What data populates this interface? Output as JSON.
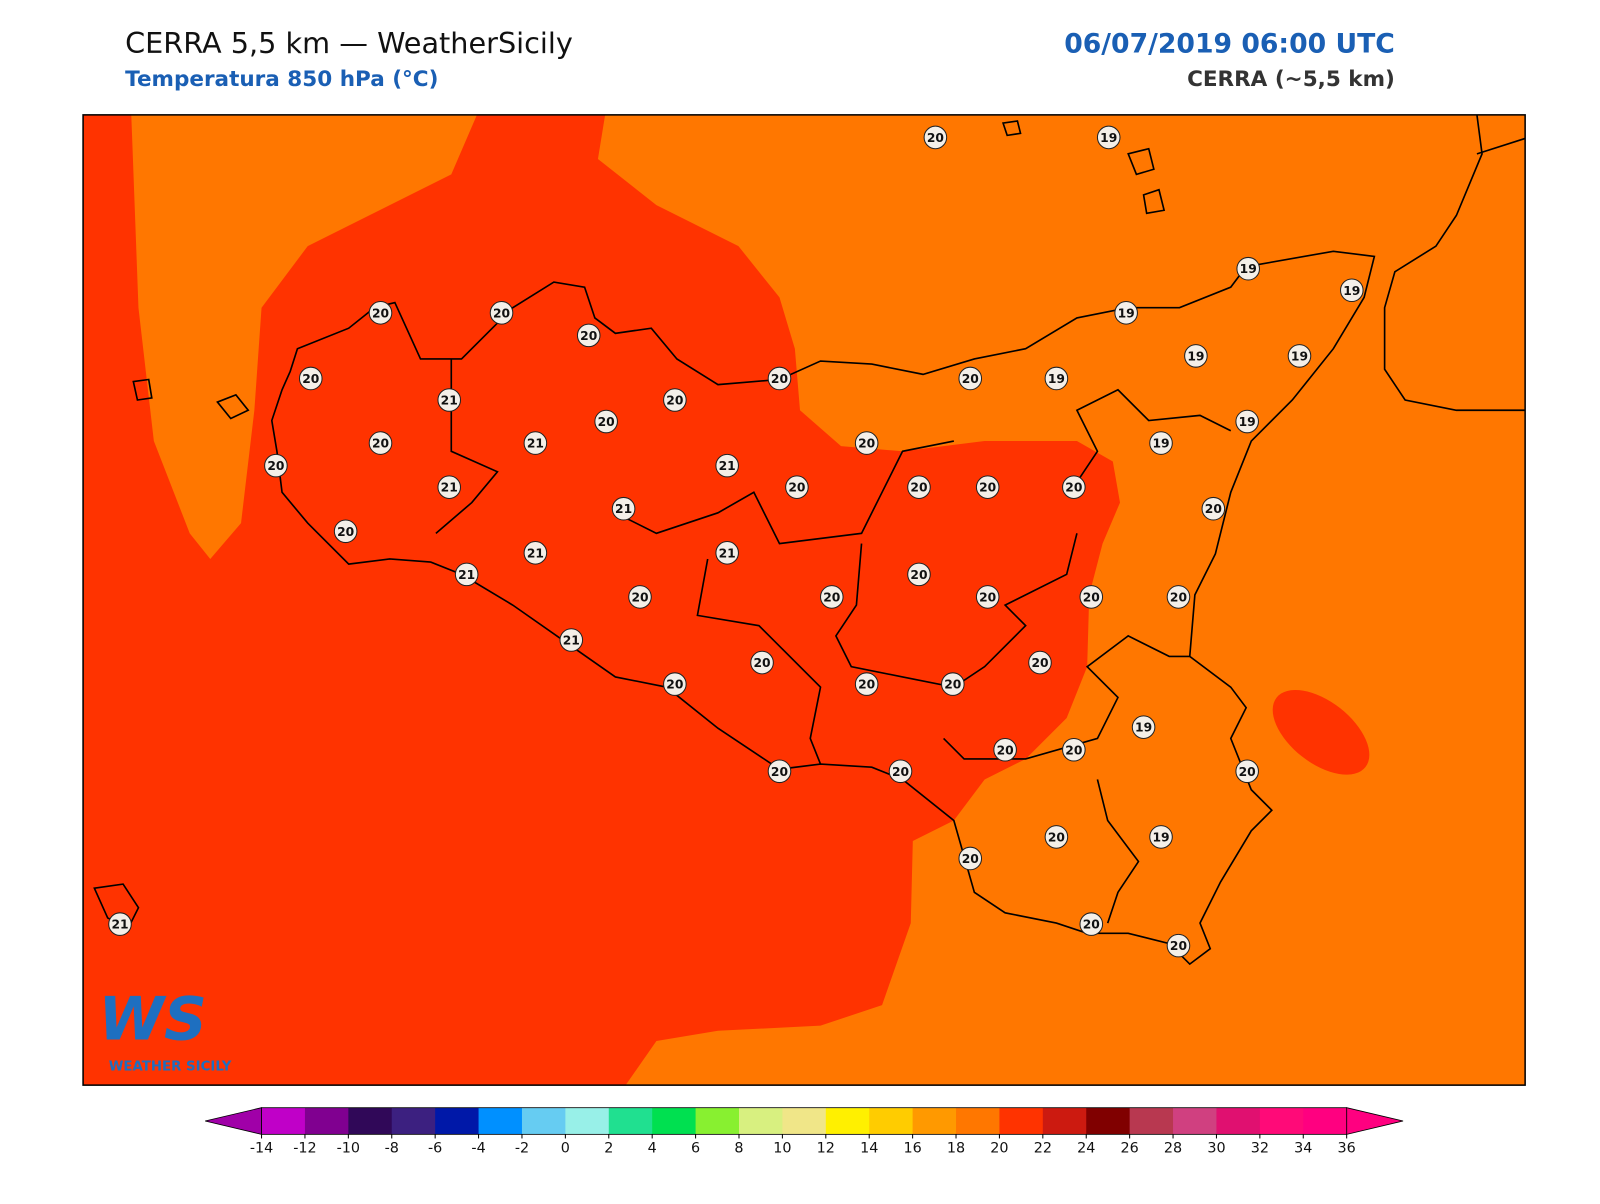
{
  "header": {
    "title": "CERRA 5,5 km — WeatherSicily",
    "subtitle": "Temperatura 850 hPa (°C)",
    "date": "06/07/2019 06:00 UTC",
    "model": "CERRA (~5,5 km)"
  },
  "map": {
    "stations": [
      20,
      19,
      20,
      20,
      20,
      19,
      19,
      19,
      20,
      20,
      20,
      19,
      19,
      19,
      21,
      20,
      20,
      19,
      20,
      21,
      20,
      19,
      20,
      21,
      21,
      20,
      20,
      20,
      20,
      21,
      20,
      20,
      21,
      21,
      21,
      20,
      20,
      20,
      20,
      20,
      20,
      21,
      20,
      20,
      20,
      20,
      20,
      19,
      20,
      20,
      20,
      20,
      20,
      20,
      20,
      19,
      21,
      20,
      20
    ]
  },
  "logo": {
    "mark": "WS",
    "name": "WEATHER SICILY"
  },
  "colorbar": {
    "ticks": [
      -14,
      -12,
      -10,
      -8,
      -6,
      -4,
      -2,
      0,
      2,
      4,
      6,
      8,
      10,
      12,
      14,
      16,
      18,
      20,
      22,
      24,
      26,
      28,
      30,
      32,
      34,
      36
    ],
    "colors": [
      "#c000c8",
      "#800090",
      "#300858",
      "#3c2080",
      "#0018a8",
      "#0090ff",
      "#66ccf2",
      "#98f0e8",
      "#20e090",
      "#00e050",
      "#88f030",
      "#d8f080",
      "#f0e688",
      "#fff000",
      "#ffcc00",
      "#ff9900",
      "#ff7700",
      "#ff3300",
      "#cc1a10",
      "#800000",
      "#b83850",
      "#d04080",
      "#e01070",
      "#ff0a78",
      "#ff0080"
    ],
    "under": "#a000a8",
    "over": "#ff0080"
  }
}
